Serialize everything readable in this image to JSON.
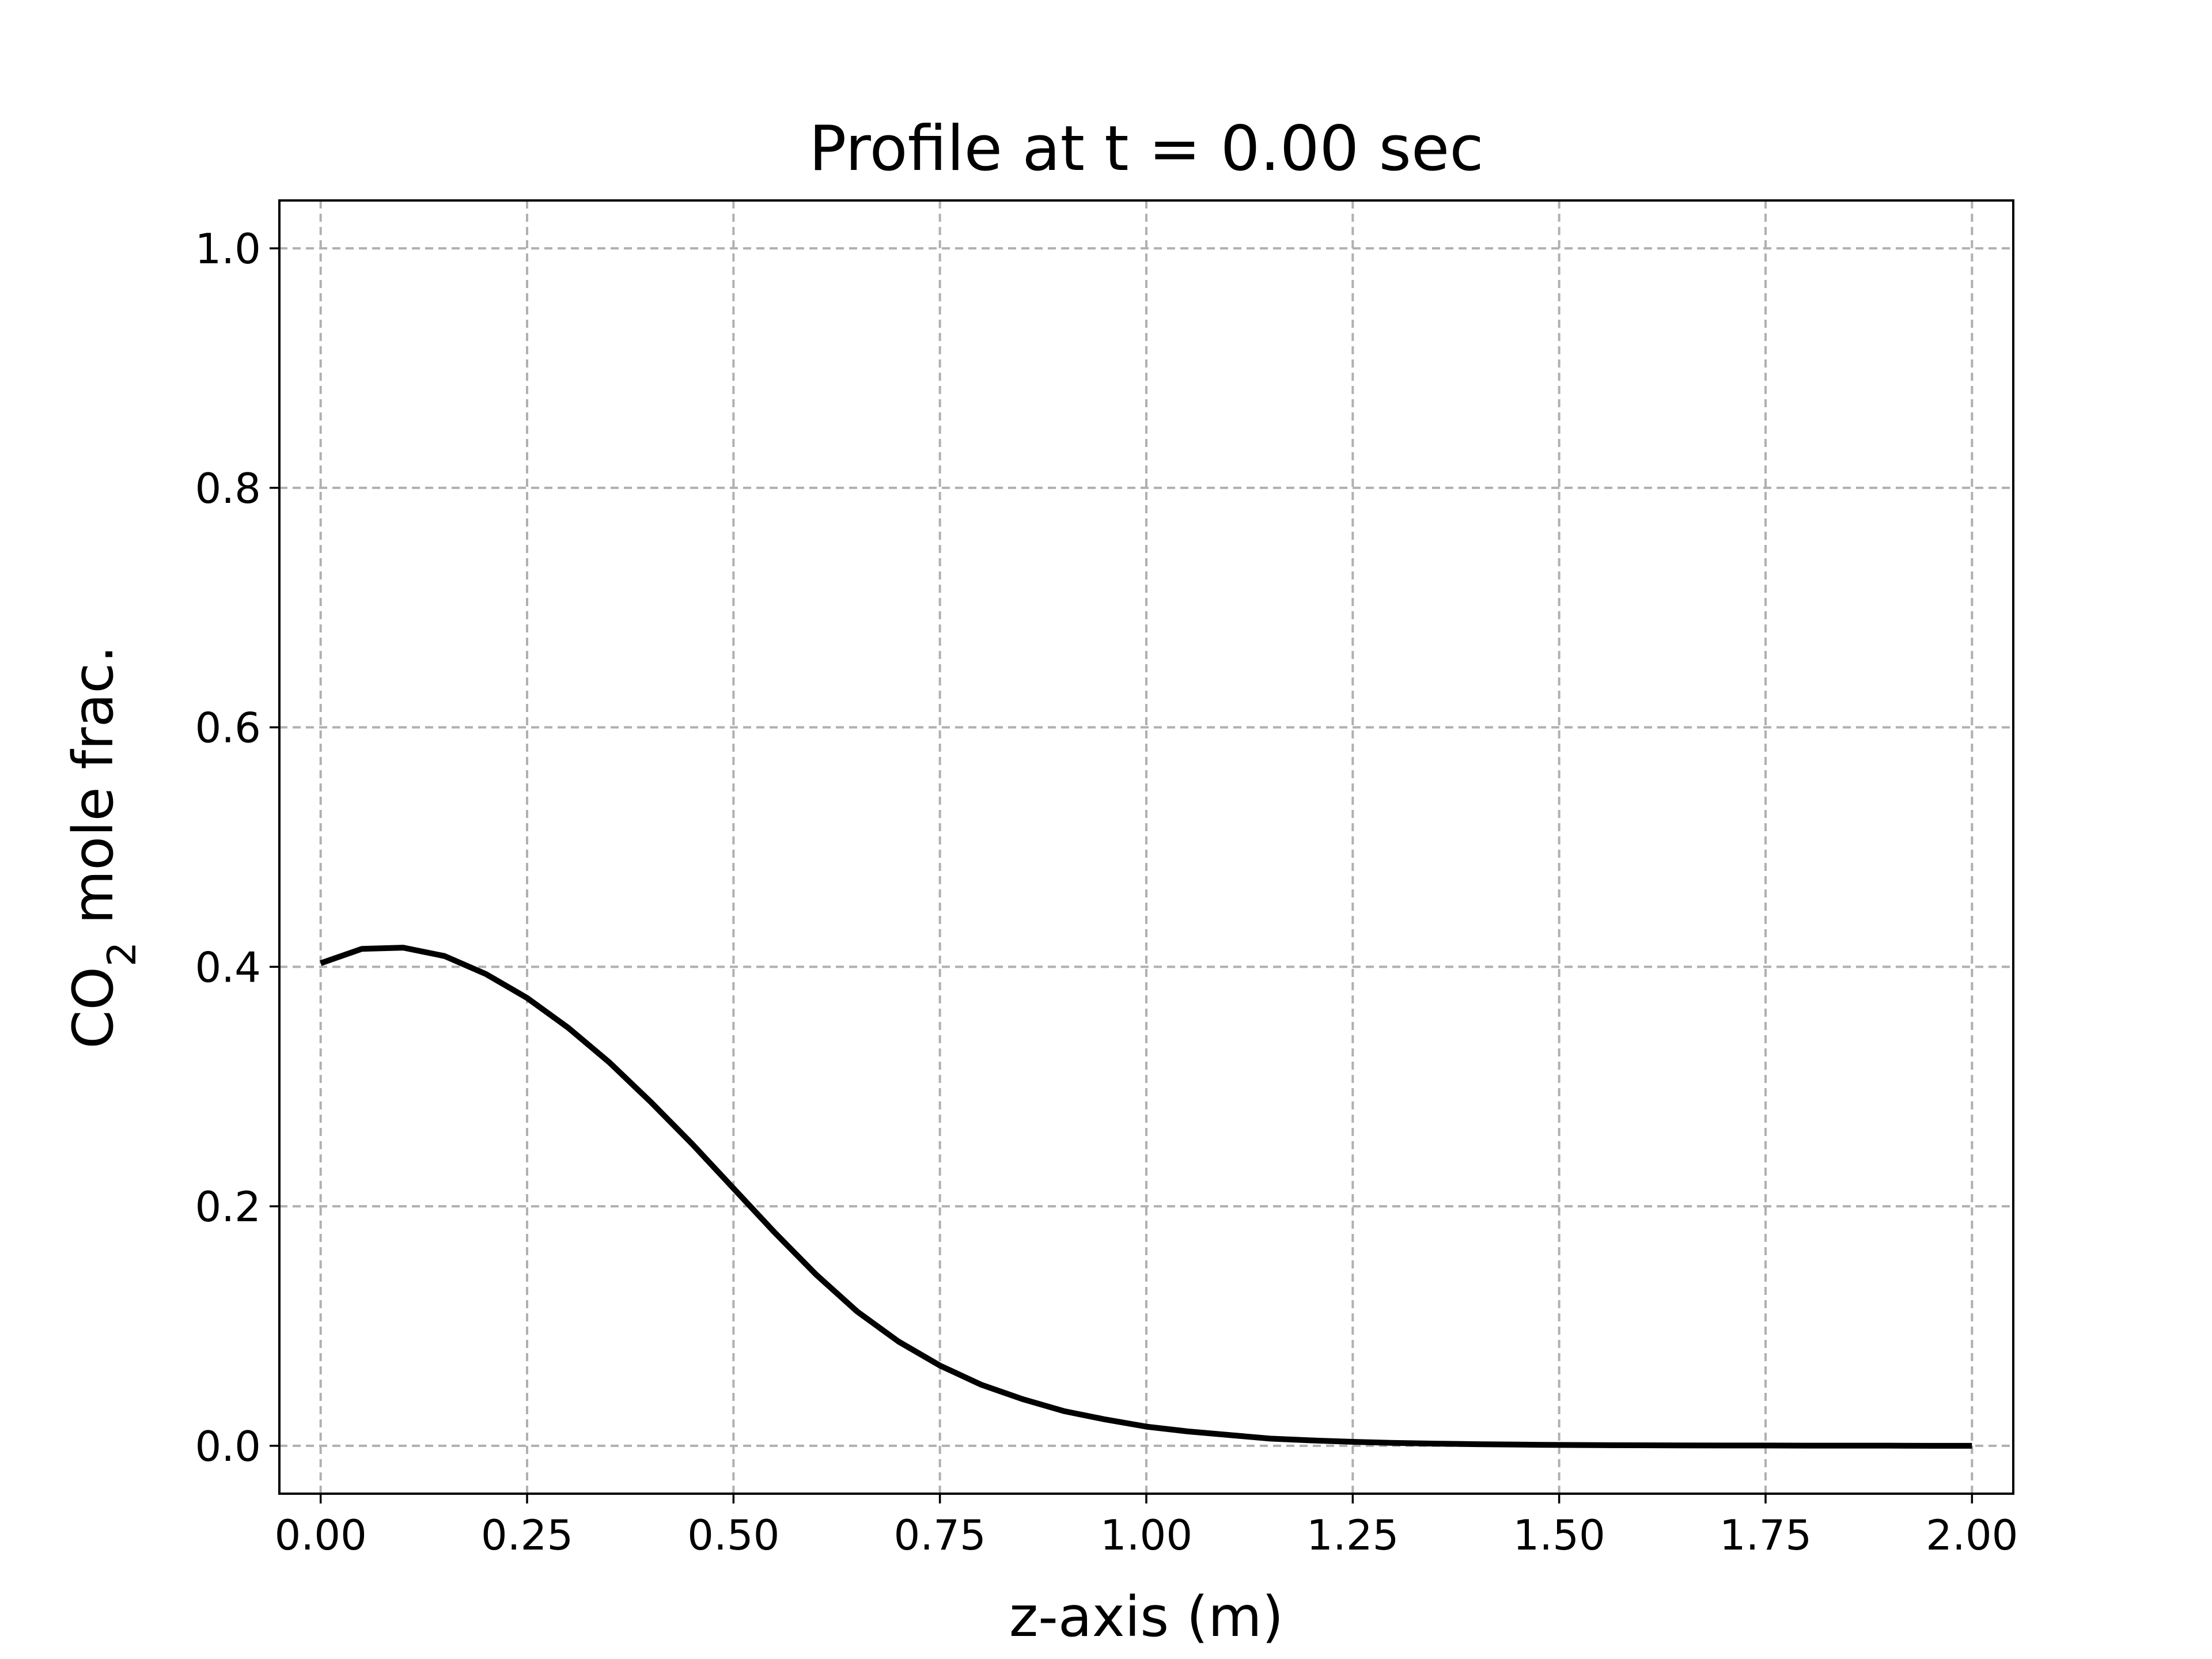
{
  "chart_data": {
    "type": "line",
    "title": "Profile at t = 0.00 sec",
    "xlabel": "z-axis (m)",
    "ylabel_main": "CO",
    "ylabel_sub": "2",
    "ylabel_rest": " mole frac.",
    "xlim": [
      -0.05,
      2.05
    ],
    "ylim": [
      -0.04,
      1.04
    ],
    "grid": true,
    "x_ticks": [
      {
        "value": 0.0,
        "label": "0.00"
      },
      {
        "value": 0.25,
        "label": "0.25"
      },
      {
        "value": 0.5,
        "label": "0.50"
      },
      {
        "value": 0.75,
        "label": "0.75"
      },
      {
        "value": 1.0,
        "label": "1.00"
      },
      {
        "value": 1.25,
        "label": "1.25"
      },
      {
        "value": 1.5,
        "label": "1.50"
      },
      {
        "value": 1.75,
        "label": "1.75"
      },
      {
        "value": 2.0,
        "label": "2.00"
      }
    ],
    "y_ticks": [
      {
        "value": 0.0,
        "label": "0.0"
      },
      {
        "value": 0.2,
        "label": "0.2"
      },
      {
        "value": 0.4,
        "label": "0.4"
      },
      {
        "value": 0.6,
        "label": "0.6"
      },
      {
        "value": 0.8,
        "label": "0.8"
      },
      {
        "value": 1.0,
        "label": "1.0"
      }
    ],
    "series_color": "#000000",
    "x": [
      0.0,
      0.05,
      0.1,
      0.15,
      0.2,
      0.25,
      0.3,
      0.35,
      0.4,
      0.45,
      0.5,
      0.55,
      0.6,
      0.65,
      0.7,
      0.75,
      0.8,
      0.85,
      0.9,
      0.95,
      1.0,
      1.05,
      1.1,
      1.15,
      1.2,
      1.25,
      1.3,
      1.35,
      1.4,
      1.45,
      1.5,
      1.55,
      1.6,
      1.65,
      1.7,
      1.75,
      1.8,
      1.85,
      1.9,
      1.95,
      2.0
    ],
    "y": [
      0.403,
      0.415,
      0.416,
      0.409,
      0.394,
      0.374,
      0.349,
      0.32,
      0.287,
      0.252,
      0.215,
      0.178,
      0.143,
      0.112,
      0.087,
      0.067,
      0.051,
      0.039,
      0.029,
      0.022,
      0.016,
      0.012,
      0.009,
      0.006,
      0.0045,
      0.0033,
      0.0024,
      0.0018,
      0.0013,
      0.001,
      0.0007,
      0.0005,
      0.0004,
      0.0003,
      0.0002,
      0.0002,
      0.0001,
      0.0001,
      0.0001,
      0.0,
      0.0
    ]
  }
}
